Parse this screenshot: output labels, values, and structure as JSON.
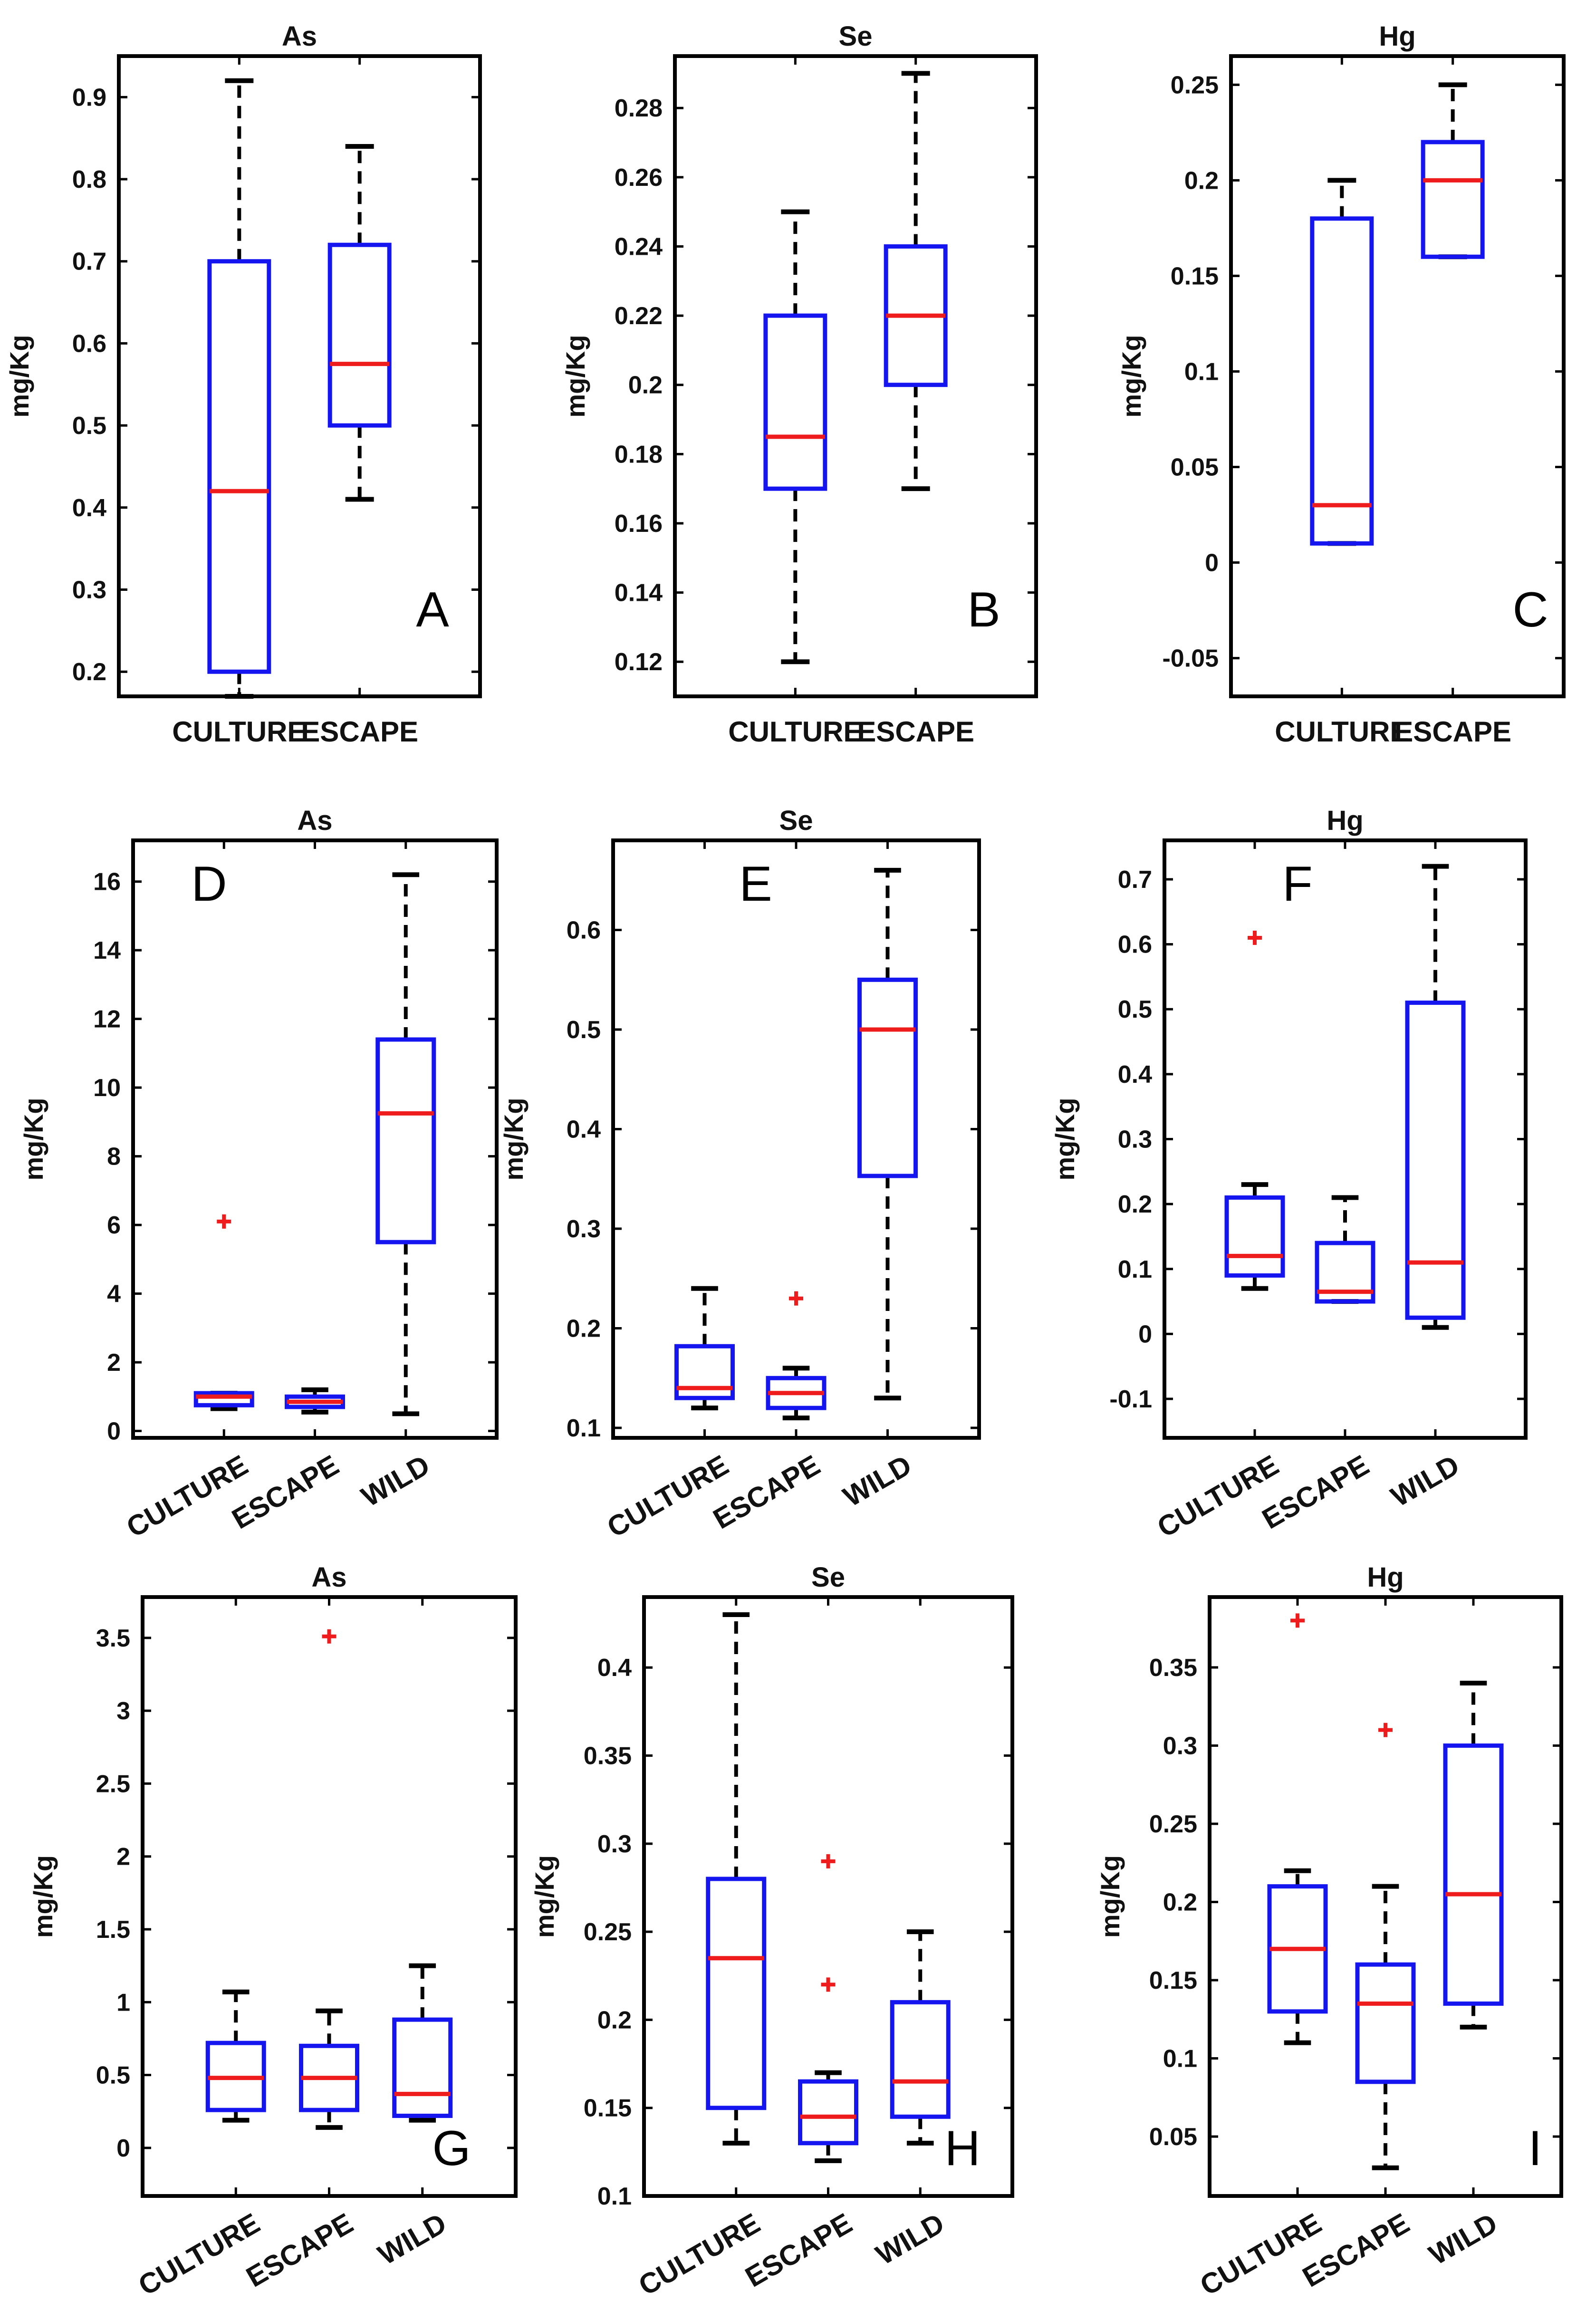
{
  "chart_data": [
    {
      "type": "box",
      "panel_label": "A",
      "title": "As",
      "ylabel": "mg/Kg",
      "ylim": [
        0.17,
        0.95
      ],
      "yticks": [
        0.2,
        0.3,
        0.4,
        0.5,
        0.6,
        0.7,
        0.8,
        0.9
      ],
      "ytick_labels": [
        "0.2",
        "0.3",
        "0.4",
        "0.5",
        "0.6",
        "0.7",
        "0.8",
        "0.9"
      ],
      "categories": [
        "CULTURE",
        "ESCAPE"
      ],
      "boxes": [
        {
          "category": "CULTURE",
          "whisker_low": 0.17,
          "q1": 0.2,
          "median": 0.42,
          "q3": 0.7,
          "whisker_high": 0.92,
          "outliers": []
        },
        {
          "category": "ESCAPE",
          "whisker_low": 0.41,
          "q1": 0.5,
          "median": 0.575,
          "q3": 0.72,
          "whisker_high": 0.84,
          "outliers": []
        }
      ]
    },
    {
      "type": "box",
      "panel_label": "B",
      "title": "Se",
      "ylabel": "mg/Kg",
      "ylim": [
        0.11,
        0.295
      ],
      "yticks": [
        0.12,
        0.14,
        0.16,
        0.18,
        0.2,
        0.22,
        0.24,
        0.26,
        0.28
      ],
      "ytick_labels": [
        "0.12",
        "0.14",
        "0.16",
        "0.18",
        "0.2",
        "0.22",
        "0.24",
        "0.26",
        "0.28"
      ],
      "categories": [
        "CULTURE",
        "ESCAPE"
      ],
      "boxes": [
        {
          "category": "CULTURE",
          "whisker_low": 0.12,
          "q1": 0.17,
          "median": 0.185,
          "q3": 0.22,
          "whisker_high": 0.25,
          "outliers": []
        },
        {
          "category": "ESCAPE",
          "whisker_low": 0.17,
          "q1": 0.2,
          "median": 0.22,
          "q3": 0.24,
          "whisker_high": 0.29,
          "outliers": []
        }
      ]
    },
    {
      "type": "box",
      "panel_label": "C",
      "title": "Hg",
      "ylabel": "mg/Kg",
      "ylim": [
        -0.07,
        0.265
      ],
      "yticks": [
        -0.05,
        0,
        0.05,
        0.1,
        0.15,
        0.2,
        0.25
      ],
      "ytick_labels": [
        "-0.05",
        "0",
        "0.05",
        "0.1",
        "0.15",
        "0.2",
        "0.25"
      ],
      "categories": [
        "CULTURE",
        "ESCAPE"
      ],
      "boxes": [
        {
          "category": "CULTURE",
          "whisker_low": 0.01,
          "q1": 0.01,
          "median": 0.03,
          "q3": 0.18,
          "whisker_high": 0.2,
          "outliers": []
        },
        {
          "category": "ESCAPE",
          "whisker_low": 0.16,
          "q1": 0.16,
          "median": 0.2,
          "q3": 0.22,
          "whisker_high": 0.25,
          "outliers": []
        }
      ]
    },
    {
      "type": "box",
      "panel_label": "D",
      "title": "As",
      "ylabel": "mg/Kg",
      "ylim": [
        -0.2,
        17.2
      ],
      "yticks": [
        0,
        2,
        4,
        6,
        8,
        10,
        12,
        14,
        16
      ],
      "ytick_labels": [
        "0",
        "2",
        "4",
        "6",
        "8",
        "10",
        "12",
        "14",
        "16"
      ],
      "categories": [
        "CULTURE",
        "ESCAPE",
        "WILD"
      ],
      "boxes": [
        {
          "category": "CULTURE",
          "whisker_low": 0.65,
          "q1": 0.75,
          "median": 1.0,
          "q3": 1.1,
          "whisker_high": 1.1,
          "outliers": [
            6.1
          ]
        },
        {
          "category": "ESCAPE",
          "whisker_low": 0.55,
          "q1": 0.7,
          "median": 0.85,
          "q3": 1.0,
          "whisker_high": 1.2,
          "outliers": []
        },
        {
          "category": "WILD",
          "whisker_low": 0.5,
          "q1": 5.5,
          "median": 9.25,
          "q3": 11.4,
          "whisker_high": 16.2,
          "outliers": []
        }
      ]
    },
    {
      "type": "box",
      "panel_label": "E",
      "title": "Se",
      "ylabel": "mg/Kg",
      "ylim": [
        0.09,
        0.69
      ],
      "yticks": [
        0.1,
        0.2,
        0.3,
        0.4,
        0.5,
        0.6
      ],
      "ytick_labels": [
        "0.1",
        "0.2",
        "0.3",
        "0.4",
        "0.5",
        "0.6"
      ],
      "categories": [
        "CULTURE",
        "ESCAPE",
        "WILD"
      ],
      "boxes": [
        {
          "category": "CULTURE",
          "whisker_low": 0.12,
          "q1": 0.13,
          "median": 0.14,
          "q3": 0.182,
          "whisker_high": 0.24,
          "outliers": []
        },
        {
          "category": "ESCAPE",
          "whisker_low": 0.11,
          "q1": 0.12,
          "median": 0.135,
          "q3": 0.15,
          "whisker_high": 0.16,
          "outliers": [
            0.23
          ]
        },
        {
          "category": "WILD",
          "whisker_low": 0.13,
          "q1": 0.353,
          "median": 0.5,
          "q3": 0.55,
          "whisker_high": 0.66,
          "outliers": []
        }
      ]
    },
    {
      "type": "box",
      "panel_label": "F",
      "title": "Hg",
      "ylabel": "mg/Kg",
      "ylim": [
        -0.16,
        0.76
      ],
      "yticks": [
        -0.1,
        0,
        0.1,
        0.2,
        0.3,
        0.4,
        0.5,
        0.6,
        0.7
      ],
      "ytick_labels": [
        "-0.1",
        "0",
        "0.1",
        "0.2",
        "0.3",
        "0.4",
        "0.5",
        "0.6",
        "0.7"
      ],
      "categories": [
        "CULTURE",
        "ESCAPE",
        "WILD"
      ],
      "boxes": [
        {
          "category": "CULTURE",
          "whisker_low": 0.07,
          "q1": 0.09,
          "median": 0.12,
          "q3": 0.21,
          "whisker_high": 0.23,
          "outliers": [
            0.61
          ]
        },
        {
          "category": "ESCAPE",
          "whisker_low": 0.05,
          "q1": 0.05,
          "median": 0.065,
          "q3": 0.14,
          "whisker_high": 0.21,
          "outliers": []
        },
        {
          "category": "WILD",
          "whisker_low": 0.01,
          "q1": 0.025,
          "median": 0.11,
          "q3": 0.51,
          "whisker_high": 0.72,
          "outliers": []
        }
      ]
    },
    {
      "type": "box",
      "panel_label": "G",
      "title": "As",
      "ylabel": "mg/Kg",
      "ylim": [
        -0.33,
        3.78
      ],
      "yticks": [
        0,
        0.5,
        1,
        1.5,
        2,
        2.5,
        3,
        3.5
      ],
      "ytick_labels": [
        "0",
        "0.5",
        "1",
        "1.5",
        "2",
        "2.5",
        "3",
        "3.5"
      ],
      "categories": [
        "CULTURE",
        "ESCAPE",
        "WILD"
      ],
      "boxes": [
        {
          "category": "CULTURE",
          "whisker_low": 0.19,
          "q1": 0.26,
          "median": 0.48,
          "q3": 0.72,
          "whisker_high": 1.07,
          "outliers": []
        },
        {
          "category": "ESCAPE",
          "whisker_low": 0.14,
          "q1": 0.26,
          "median": 0.48,
          "q3": 0.7,
          "whisker_high": 0.94,
          "outliers": [
            3.51
          ]
        },
        {
          "category": "WILD",
          "whisker_low": 0.19,
          "q1": 0.22,
          "median": 0.37,
          "q3": 0.88,
          "whisker_high": 1.25,
          "outliers": []
        }
      ]
    },
    {
      "type": "box",
      "panel_label": "H",
      "title": "Se",
      "ylabel": "mg/Kg",
      "ylim": [
        0.1,
        0.44
      ],
      "yticks": [
        0.1,
        0.15,
        0.2,
        0.25,
        0.3,
        0.35,
        0.4
      ],
      "ytick_labels": [
        "0.1",
        "0.15",
        "0.2",
        "0.25",
        "0.3",
        "0.35",
        "0.4"
      ],
      "categories": [
        "CULTURE",
        "ESCAPE",
        "WILD"
      ],
      "boxes": [
        {
          "category": "CULTURE",
          "whisker_low": 0.13,
          "q1": 0.15,
          "median": 0.235,
          "q3": 0.28,
          "whisker_high": 0.43,
          "outliers": []
        },
        {
          "category": "ESCAPE",
          "whisker_low": 0.12,
          "q1": 0.13,
          "median": 0.145,
          "q3": 0.165,
          "whisker_high": 0.17,
          "outliers": [
            0.22,
            0.29
          ]
        },
        {
          "category": "WILD",
          "whisker_low": 0.13,
          "q1": 0.145,
          "median": 0.165,
          "q3": 0.21,
          "whisker_high": 0.25,
          "outliers": []
        }
      ]
    },
    {
      "type": "box",
      "panel_label": "I",
      "title": "Hg",
      "ylabel": "mg/Kg",
      "ylim": [
        0.012,
        0.395
      ],
      "yticks": [
        0.05,
        0.1,
        0.15,
        0.2,
        0.25,
        0.3,
        0.35
      ],
      "ytick_labels": [
        "0.05",
        "0.1",
        "0.15",
        "0.2",
        "0.25",
        "0.3",
        "0.35"
      ],
      "categories": [
        "CULTURE",
        "ESCAPE",
        "WILD"
      ],
      "boxes": [
        {
          "category": "CULTURE",
          "whisker_low": 0.11,
          "q1": 0.13,
          "median": 0.17,
          "q3": 0.21,
          "whisker_high": 0.22,
          "outliers": [
            0.38
          ]
        },
        {
          "category": "ESCAPE",
          "whisker_low": 0.03,
          "q1": 0.085,
          "median": 0.135,
          "q3": 0.16,
          "whisker_high": 0.21,
          "outliers": [
            0.31
          ]
        },
        {
          "category": "WILD",
          "whisker_low": 0.12,
          "q1": 0.135,
          "median": 0.205,
          "q3": 0.3,
          "whisker_high": 0.34,
          "outliers": []
        }
      ]
    }
  ]
}
